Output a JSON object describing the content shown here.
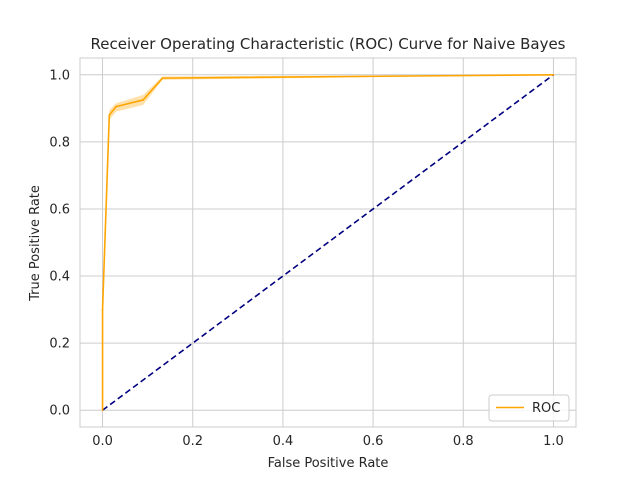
{
  "chart_data": {
    "type": "line",
    "title": "Receiver Operating Characteristic (ROC) Curve for Naive Bayes",
    "xlabel": "False Positive Rate",
    "ylabel": "True Positive Rate",
    "xlim": [
      -0.05,
      1.05
    ],
    "ylim": [
      -0.05,
      1.05
    ],
    "xticks": [
      0.0,
      0.2,
      0.4,
      0.6,
      0.8,
      1.0
    ],
    "yticks": [
      0.0,
      0.2,
      0.4,
      0.6,
      0.8,
      1.0
    ],
    "xtick_labels": [
      "0.0",
      "0.2",
      "0.4",
      "0.6",
      "0.8",
      "1.0"
    ],
    "ytick_labels": [
      "0.0",
      "0.2",
      "0.4",
      "0.6",
      "0.8",
      "1.0"
    ],
    "grid": true,
    "legend_position": "lower right",
    "series": [
      {
        "name": "ROC",
        "color": "#FFA500",
        "style": "solid",
        "band_color": "#FFC966",
        "x": [
          0.0,
          0.0,
          0.015,
          0.03,
          0.09,
          0.133,
          1.0
        ],
        "y": [
          0.0,
          0.3,
          0.88,
          0.905,
          0.925,
          0.99,
          1.0
        ],
        "band_lower": [
          0.0,
          0.28,
          0.865,
          0.89,
          0.91,
          0.985,
          1.0
        ],
        "band_upper": [
          0.0,
          0.32,
          0.895,
          0.915,
          0.94,
          0.995,
          1.0
        ]
      },
      {
        "color": "#000080",
        "style": "dashed",
        "x": [
          0.0,
          1.0
        ],
        "y": [
          0.0,
          1.0
        ]
      }
    ]
  }
}
